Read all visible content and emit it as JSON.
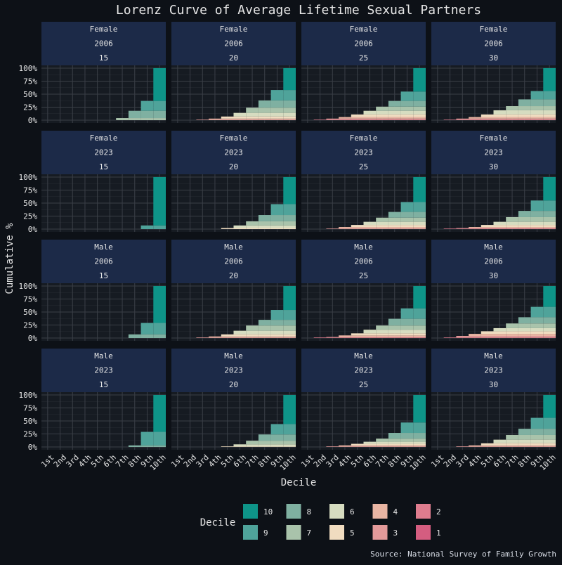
{
  "chart_data": {
    "type": "bar",
    "title": "Lorenz Curve of Average Lifetime Sexual Partners",
    "xlabel": "Decile",
    "ylabel": "Cumulative %",
    "source": "Source: National Survey of Family Growth",
    "categories": [
      "1st",
      "2nd",
      "3rd",
      "4th",
      "5th",
      "6th",
      "7th",
      "8th",
      "9th",
      "10th"
    ],
    "y_ticks": [
      "0%",
      "25%",
      "50%",
      "75%",
      "100%"
    ],
    "ylim": [
      0,
      100
    ],
    "stacked": true,
    "grid": true,
    "legend": {
      "title": "Decile",
      "position": "bottom",
      "entries": [
        {
          "label": "10",
          "color": "#0e9488"
        },
        {
          "label": "9",
          "color": "#4fa39a"
        },
        {
          "label": "8",
          "color": "#7fb0a1"
        },
        {
          "label": "7",
          "color": "#a9c3ab"
        },
        {
          "label": "6",
          "color": "#d6dcc0"
        },
        {
          "label": "5",
          "color": "#f0dcc0"
        },
        {
          "label": "4",
          "color": "#e9b5a3"
        },
        {
          "label": "3",
          "color": "#e39a9a"
        },
        {
          "label": "2",
          "color": "#de7c8e"
        },
        {
          "label": "1",
          "color": "#d45d80"
        }
      ]
    },
    "panels": [
      {
        "sex": "Female",
        "year": "2006",
        "age": "15",
        "values": [
          0,
          0,
          0,
          0,
          0,
          0,
          4,
          18,
          37,
          100
        ]
      },
      {
        "sex": "Female",
        "year": "2006",
        "age": "20",
        "values": [
          0,
          0,
          1,
          3,
          7,
          14,
          24,
          38,
          58,
          100
        ]
      },
      {
        "sex": "Female",
        "year": "2006",
        "age": "25",
        "values": [
          0,
          1,
          3,
          6,
          11,
          18,
          26,
          37,
          55,
          100
        ]
      },
      {
        "sex": "Female",
        "year": "2006",
        "age": "30",
        "values": [
          0,
          1,
          3,
          6,
          11,
          19,
          27,
          40,
          56,
          100
        ]
      },
      {
        "sex": "Female",
        "year": "2023",
        "age": "15",
        "values": [
          0,
          0,
          0,
          0,
          0,
          0,
          0,
          0,
          7,
          100
        ]
      },
      {
        "sex": "Female",
        "year": "2023",
        "age": "20",
        "values": [
          0,
          0,
          0,
          0,
          2,
          7,
          15,
          27,
          48,
          100
        ]
      },
      {
        "sex": "Female",
        "year": "2023",
        "age": "25",
        "values": [
          0,
          0,
          1,
          4,
          8,
          14,
          22,
          33,
          52,
          100
        ]
      },
      {
        "sex": "Female",
        "year": "2023",
        "age": "30",
        "values": [
          0,
          1,
          2,
          4,
          8,
          14,
          23,
          35,
          55,
          100
        ]
      },
      {
        "sex": "Male",
        "year": "2006",
        "age": "15",
        "values": [
          0,
          0,
          0,
          0,
          0,
          0,
          0,
          7,
          29,
          100
        ]
      },
      {
        "sex": "Male",
        "year": "2006",
        "age": "20",
        "values": [
          0,
          0,
          1,
          3,
          7,
          14,
          24,
          35,
          54,
          100
        ]
      },
      {
        "sex": "Male",
        "year": "2006",
        "age": "25",
        "values": [
          0,
          1,
          2,
          5,
          9,
          16,
          24,
          37,
          57,
          100
        ]
      },
      {
        "sex": "Male",
        "year": "2006",
        "age": "30",
        "values": [
          0,
          1,
          4,
          8,
          13,
          19,
          28,
          40,
          60,
          100
        ]
      },
      {
        "sex": "Male",
        "year": "2023",
        "age": "15",
        "values": [
          0,
          0,
          0,
          0,
          0,
          0,
          0,
          3,
          29,
          100
        ]
      },
      {
        "sex": "Male",
        "year": "2023",
        "age": "20",
        "values": [
          0,
          0,
          0,
          0,
          1,
          5,
          12,
          24,
          44,
          100
        ]
      },
      {
        "sex": "Male",
        "year": "2023",
        "age": "25",
        "values": [
          0,
          0,
          1,
          3,
          6,
          10,
          16,
          27,
          47,
          100
        ]
      },
      {
        "sex": "Male",
        "year": "2023",
        "age": "30",
        "values": [
          0,
          0,
          1,
          3,
          7,
          14,
          23,
          35,
          56,
          100
        ]
      }
    ]
  }
}
